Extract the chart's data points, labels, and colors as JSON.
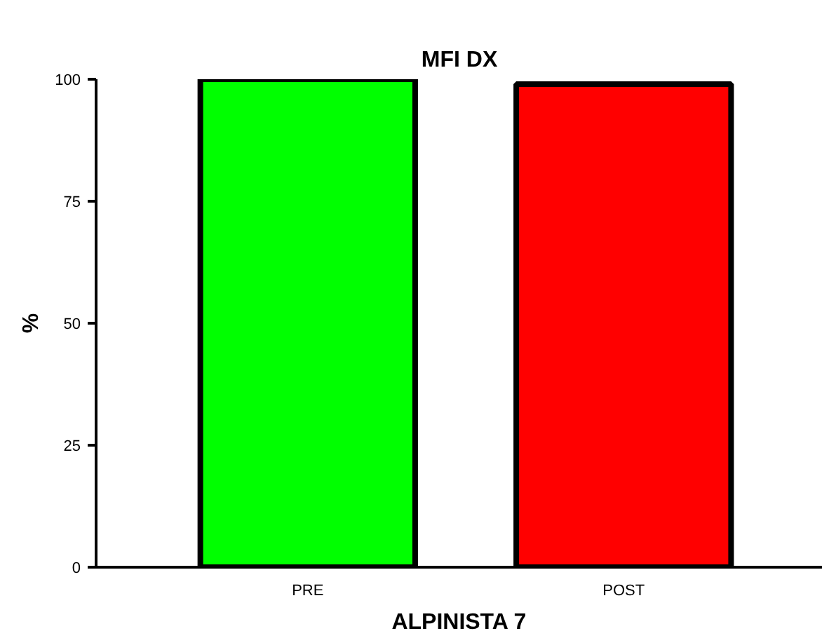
{
  "chart_data": {
    "type": "bar",
    "title": "MFI DX",
    "xlabel": "ALPINISTA 7",
    "ylabel": "%",
    "categories": [
      "PRE",
      "POST"
    ],
    "values": [
      100,
      99
    ],
    "colors": [
      "#00ff00",
      "#ff0000"
    ],
    "ylim": [
      0,
      100
    ],
    "yticks": [
      0,
      25,
      50,
      75,
      100
    ],
    "grid": false
  }
}
